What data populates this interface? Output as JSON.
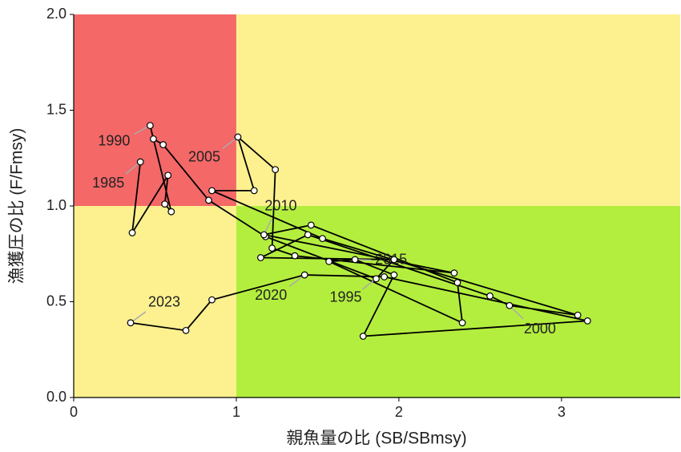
{
  "chart_data": {
    "type": "kobe",
    "xlabel": "親魚量の比 (SB/SBmsy)",
    "ylabel": "漁獲圧の比 (F/Fmsy)",
    "x": [
      0.41,
      0.36,
      0.58,
      0.56,
      0.6,
      0.47,
      0.49,
      0.55,
      0.83,
      1.18,
      1.86,
      1.97,
      1.15,
      1.44,
      2.56,
      2.68,
      3.1,
      1.53,
      0.85,
      1.11,
      1.01,
      1.24,
      1.22,
      1.36,
      2.34,
      1.17,
      1.46,
      2.36,
      2.39,
      1.57,
      1.73,
      1.97,
      1.78,
      3.16,
      1.91,
      1.42,
      0.85,
      0.69,
      0.35
    ],
    "values": [
      1.23,
      0.86,
      1.16,
      1.01,
      0.97,
      1.42,
      1.35,
      1.32,
      1.03,
      0.84,
      0.62,
      0.72,
      0.73,
      0.85,
      0.53,
      0.48,
      0.43,
      0.83,
      1.08,
      1.08,
      1.36,
      1.19,
      0.78,
      0.74,
      0.65,
      0.85,
      0.9,
      0.6,
      0.39,
      0.71,
      0.72,
      0.64,
      0.32,
      0.4,
      0.63,
      0.64,
      0.51,
      0.35,
      0.39
    ],
    "point_labels": [
      "1985",
      null,
      null,
      null,
      null,
      "1990",
      null,
      null,
      null,
      null,
      "1995",
      null,
      null,
      null,
      null,
      "2000",
      null,
      null,
      null,
      null,
      "2005",
      null,
      null,
      null,
      null,
      "2010",
      null,
      null,
      null,
      null,
      "2015",
      null,
      null,
      null,
      null,
      "2020",
      null,
      null,
      "2023"
    ],
    "reference_x": 1,
    "reference_y": 1,
    "xlim": [
      0,
      3.73
    ],
    "ylim": [
      0,
      2.0
    ],
    "xticks": [
      0,
      1,
      2,
      3
    ],
    "yticks": [
      {
        "value": 0,
        "label": "0.0"
      },
      0.5,
      {
        "value": 1,
        "label": "1.0"
      },
      1.5,
      {
        "value": 2,
        "label": "2.0"
      }
    ]
  }
}
